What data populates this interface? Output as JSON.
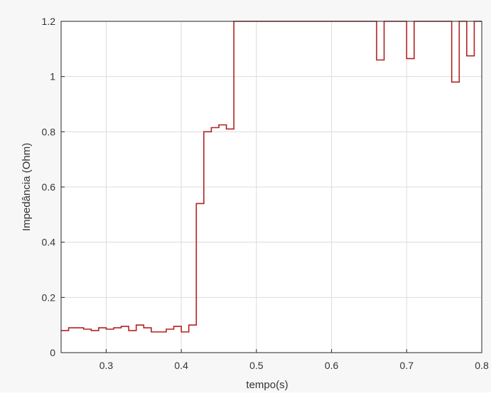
{
  "chart_data": {
    "type": "line",
    "xlabel": "tempo(s)",
    "ylabel": "Impedância (Ohm)",
    "xlim": [
      0.24,
      0.8
    ],
    "ylim": [
      0,
      1.2
    ],
    "grid": true,
    "line_color": "#b22222",
    "x_ticks": [
      0.3,
      0.4,
      0.5,
      0.6,
      0.7,
      0.8
    ],
    "x_tick_labels": [
      "0.3",
      "0.4",
      "0.5",
      "0.6",
      "0.7",
      "0.8"
    ],
    "y_ticks": [
      0,
      0.2,
      0.4,
      0.6,
      0.8,
      1.0,
      1.2
    ],
    "y_tick_labels": [
      "0",
      "0.2",
      "0.4",
      "0.6",
      "0.8",
      "1",
      "1.2"
    ],
    "series": [
      {
        "step": "post",
        "x": [
          0.24,
          0.25,
          0.27,
          0.28,
          0.29,
          0.3,
          0.31,
          0.32,
          0.33,
          0.34,
          0.35,
          0.36,
          0.37,
          0.38,
          0.39,
          0.4,
          0.41,
          0.42,
          0.43,
          0.44,
          0.45,
          0.46,
          0.47,
          0.48,
          0.66,
          0.67,
          0.7,
          0.71,
          0.76,
          0.77,
          0.78,
          0.79,
          0.8
        ],
        "y": [
          0.08,
          0.09,
          0.085,
          0.08,
          0.09,
          0.085,
          0.09,
          0.095,
          0.08,
          0.1,
          0.09,
          0.075,
          0.075,
          0.085,
          0.095,
          0.075,
          0.1,
          0.54,
          0.8,
          0.815,
          0.825,
          0.81,
          1.2,
          1.2,
          1.06,
          1.2,
          1.065,
          1.2,
          0.98,
          1.2,
          1.075,
          1.2,
          1.2
        ]
      }
    ]
  }
}
